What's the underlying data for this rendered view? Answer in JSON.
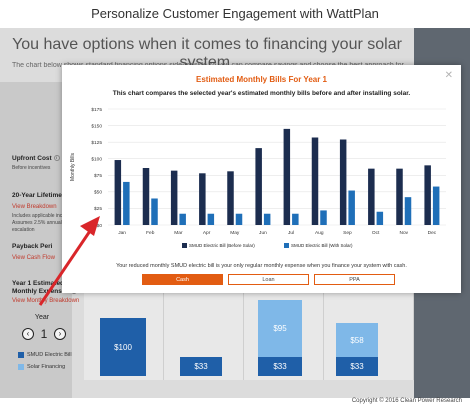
{
  "page_title": "Personalize Customer Engagement with WattPlan",
  "background": {
    "heading": "You have options when it comes to financing your solar system.",
    "subheading": "The chart below shows standard financing options side-by-side so you can compare savings and choose the best approach for",
    "upfront_cost": {
      "label": "Upfront Cost",
      "sub": "Before incentives"
    },
    "lifetime_cost": {
      "label": "20-Year Lifetime Cost",
      "link": "View Breakdown",
      "note1": "Includes applicable incentiv",
      "note2": "Assumes 2.5% annual utili",
      "note3": "escalation"
    },
    "payback": {
      "label": "Payback Peri",
      "link": "View Cash Flow"
    },
    "monthly": {
      "label1": "Year 1 Estimated",
      "label2": "Monthly Expenses",
      "link": "View Monthly Breakdown"
    },
    "year": {
      "label": "Year",
      "value": "1",
      "prev": "‹",
      "next": "›"
    },
    "legend": {
      "electric": "SMUD Electric Bill",
      "financing": "Solar Financing"
    },
    "bars": {
      "cash_bill": "$100",
      "loan_bill": "$33",
      "ppa_financing": "$95",
      "ppa_bill": "$33",
      "other_financing": "$58",
      "other_bill": "$33"
    }
  },
  "modal": {
    "title": "Estimated Monthly Bills For Year 1",
    "subtitle": "This chart compares the selected year's estimated monthly bills before and after installing solar.",
    "close_icon": "close-icon",
    "note": "Your reduced monthly SMUD electric bill is your only regular monthly expense when you finance your system with cash.",
    "buttons": {
      "cash": "Cash",
      "loan": "Loan",
      "ppa": "PPA"
    }
  },
  "copyright": "Copyright © 2016 Clean Power Research",
  "colors": {
    "accent": "#e25c12",
    "before": "#1c2d4f",
    "after": "#1f6fb8",
    "financing": "#7fb8e8",
    "link": "#c0392b"
  },
  "chart_data": {
    "type": "bar",
    "title": "",
    "ylabel": "Monthly Bills",
    "xlabel": "",
    "ylim": [
      0,
      175
    ],
    "yticks": [
      0,
      25,
      50,
      75,
      100,
      125,
      150,
      175
    ],
    "ytick_labels": [
      "$0",
      "$25",
      "$50",
      "$75",
      "$100",
      "$125",
      "$150",
      "$175"
    ],
    "categories": [
      "Jan",
      "Feb",
      "Mar",
      "Apr",
      "May",
      "Jun",
      "Jul",
      "Aug",
      "Sep",
      "Oct",
      "Nov",
      "Dec"
    ],
    "series": [
      {
        "name": "SMUD Electric Bill (Before Solar)",
        "values": [
          98,
          86,
          82,
          78,
          81,
          116,
          145,
          132,
          129,
          85,
          85,
          90
        ]
      },
      {
        "name": "SMUD Electric Bill (With Solar)",
        "values": [
          65,
          40,
          17,
          17,
          17,
          17,
          17,
          22,
          52,
          20,
          42,
          58
        ]
      }
    ],
    "grid": true
  }
}
